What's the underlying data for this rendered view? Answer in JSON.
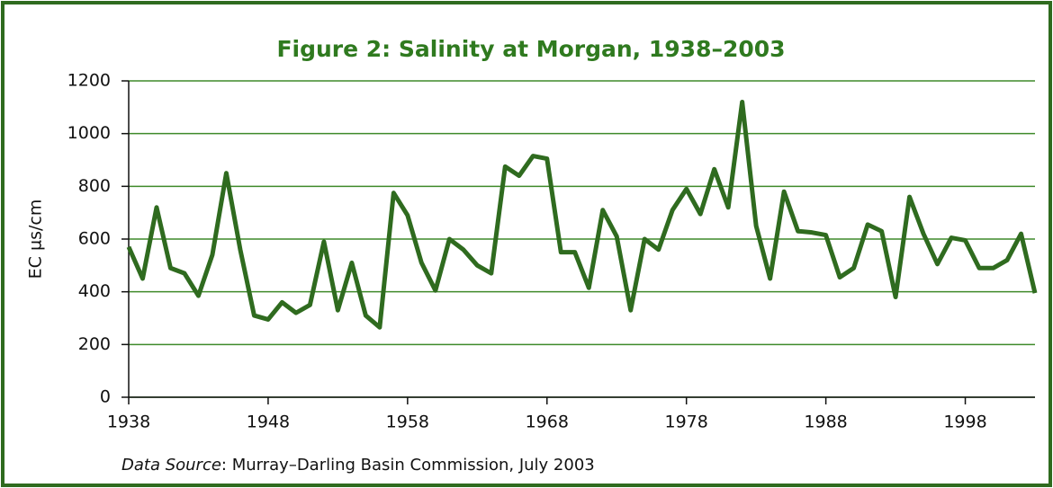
{
  "chart_data": {
    "type": "line",
    "title": "Figure 2: Salinity at Morgan, 1938–2003",
    "y_label": "EC µs/cm",
    "source_label": "Data Source",
    "source_text": ": Murray–Darling Basin Commission, July 2003",
    "x": [
      1938,
      1939,
      1940,
      1941,
      1942,
      1943,
      1944,
      1945,
      1946,
      1947,
      1948,
      1949,
      1950,
      1951,
      1952,
      1953,
      1954,
      1955,
      1956,
      1957,
      1958,
      1959,
      1960,
      1961,
      1962,
      1963,
      1964,
      1965,
      1966,
      1967,
      1968,
      1969,
      1970,
      1971,
      1972,
      1973,
      1974,
      1975,
      1976,
      1977,
      1978,
      1979,
      1980,
      1981,
      1982,
      1983,
      1984,
      1985,
      1986,
      1987,
      1988,
      1989,
      1990,
      1991,
      1992,
      1993,
      1994,
      1995,
      1996,
      1997,
      1998,
      1999,
      2000,
      2001,
      2002,
      2003
    ],
    "series": [
      {
        "name": "Salinity",
        "color": "#2f6b1f",
        "values": [
          570,
          450,
          720,
          490,
          470,
          385,
          540,
          850,
          560,
          310,
          295,
          360,
          320,
          350,
          590,
          330,
          510,
          310,
          265,
          775,
          690,
          510,
          405,
          600,
          560,
          500,
          470,
          875,
          840,
          915,
          905,
          550,
          550,
          415,
          710,
          610,
          330,
          600,
          560,
          710,
          790,
          695,
          865,
          720,
          1120,
          650,
          450,
          780,
          630,
          625,
          615,
          455,
          490,
          655,
          630,
          380,
          760,
          620,
          505,
          605,
          595,
          490,
          490,
          520,
          620,
          395
        ]
      }
    ],
    "xlim": [
      1938,
      2003
    ],
    "xticks": [
      1938,
      1948,
      1958,
      1968,
      1978,
      1988,
      1998
    ],
    "ylim": [
      0,
      1200
    ],
    "yticks": [
      0,
      200,
      400,
      600,
      800,
      1000,
      1200
    ],
    "grid": true
  }
}
